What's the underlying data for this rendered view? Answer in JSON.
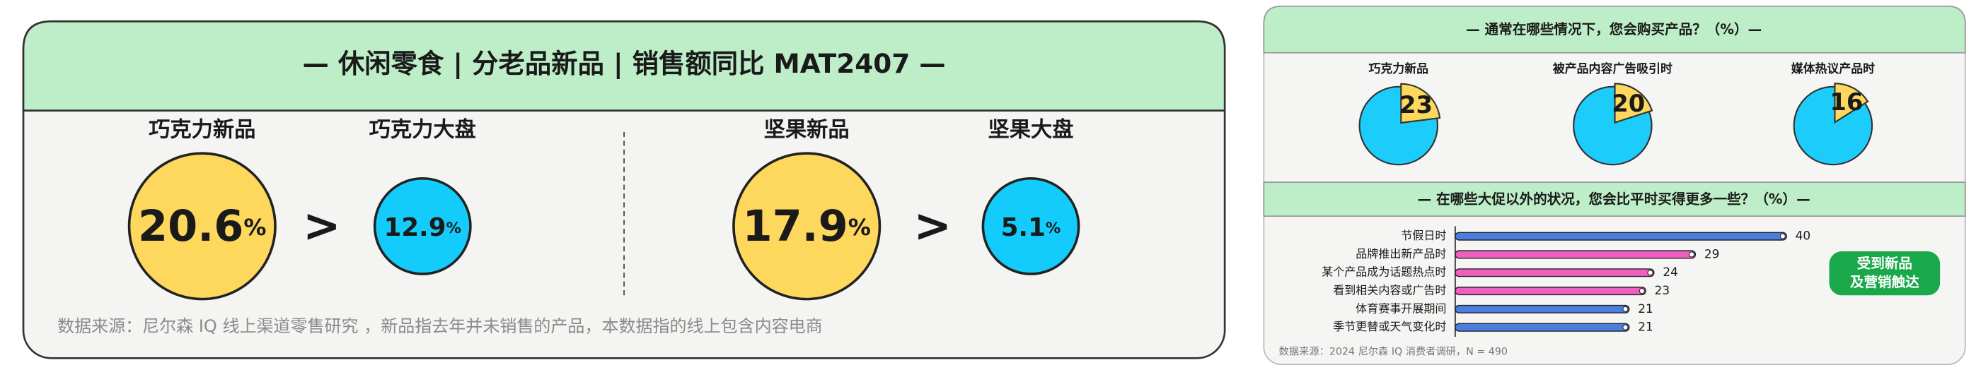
{
  "left_panel": {
    "title": "— 休闲零食 | 分老品新品 | 销售额同比 MAT2407 —",
    "groups": [
      {
        "items": [
          {
            "label": "巧克力新品",
            "value": "20.6",
            "unit": "%"
          },
          {
            "label": "巧克力大盘",
            "value": "12.9",
            "unit": "%"
          }
        ],
        "comparator": ">"
      },
      {
        "items": [
          {
            "label": "坚果新品",
            "value": "17.9",
            "unit": "%"
          },
          {
            "label": "坚果大盘",
            "value": "5.1",
            "unit": "%"
          }
        ],
        "comparator": ">"
      }
    ],
    "footnote": "数据来源：尼尔森 IQ 线上渠道零售研究 ，新品指去年并未销售的产品，本数据指的线上包含内容电商"
  },
  "right_panel": {
    "section_titles": [
      "— 通常在哪些情况下，您会购买产品？（%）—",
      "— 在哪些大促以外的状况，您会比平时买得更多一些？（%）—"
    ],
    "badge": [
      "受到新品",
      "及营销触达"
    ],
    "footnote": "数据来源：2024 尼尔森 IQ 消费者调研，N = 490"
  },
  "chart_data": [
    {
      "type": "pie",
      "title": "巧克力新品",
      "values": [
        23
      ],
      "colors": [
        "#fdd85d"
      ],
      "rest_color": "#1cccfb"
    },
    {
      "type": "pie",
      "title": "被产品内容广告吸引时",
      "values": [
        20
      ],
      "colors": [
        "#fdd85d"
      ],
      "rest_color": "#1cccfb"
    },
    {
      "type": "pie",
      "title": "媒体热议产品时",
      "values": [
        16
      ],
      "colors": [
        "#fdd85d"
      ],
      "rest_color": "#1cccfb"
    },
    {
      "type": "bar",
      "orientation": "horizontal",
      "categories": [
        "节假日时",
        "品牌推出新产品时",
        "某个产品成为话题热点时",
        "看到相关内容或广告时",
        "体育赛事开展期间",
        "季节更替或天气变化时"
      ],
      "values": [
        40,
        29,
        24,
        23,
        21,
        21
      ],
      "colors": [
        "#4a7fe0",
        "#ee5fc0",
        "#ee5fc0",
        "#ee5fc0",
        "#4a7fe0",
        "#4a7fe0"
      ],
      "xlim": [
        0,
        45
      ]
    }
  ]
}
